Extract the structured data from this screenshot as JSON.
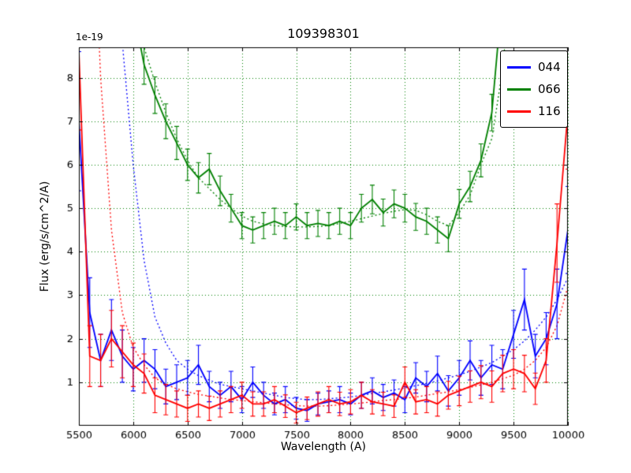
{
  "chart_data": {
    "type": "line",
    "title": "109398301",
    "xlabel": "Wavelength (A)",
    "ylabel": "Flux (erg/s/cm^2/A)",
    "offset_label": "1e-19",
    "xlim": [
      5500,
      10000
    ],
    "ylim": [
      0,
      8.7
    ],
    "xticks": [
      5500,
      6000,
      6500,
      7000,
      7500,
      8000,
      8500,
      9000,
      9500,
      10000
    ],
    "yticks": [
      1,
      2,
      3,
      4,
      5,
      6,
      7,
      8
    ],
    "grid": {
      "on": true,
      "color": "#008000",
      "style": "dotted"
    },
    "legend": {
      "position": "upper right",
      "entries": [
        {
          "label": "044",
          "color": "#0000ff"
        },
        {
          "label": "066",
          "color": "#008000"
        },
        {
          "label": "116",
          "color": "#ff0000"
        }
      ]
    },
    "series": [
      {
        "name": "044-dotted-model",
        "color": "#0000ff",
        "style": "dotted",
        "x": [
          5500,
          5600,
          5700,
          5800,
          5900,
          6000,
          6100,
          6200,
          6300,
          6400,
          6500,
          6600,
          6700,
          6800,
          6900,
          7000,
          7100,
          7200,
          7300,
          7400,
          7500,
          7600,
          7700,
          7800,
          7900,
          8000,
          8100,
          8200,
          8300,
          8400,
          8500,
          8600,
          8700,
          8800,
          8900,
          9000,
          9100,
          9200,
          9300,
          9400,
          9500,
          9600,
          9700,
          9800,
          9900,
          10000
        ],
        "y": [
          30,
          22,
          16,
          12,
          8.8,
          6.0,
          3.8,
          2.5,
          1.9,
          1.5,
          1.3,
          1.15,
          1.05,
          0.95,
          0.9,
          0.85,
          0.8,
          0.75,
          0.7,
          0.65,
          0.62,
          0.6,
          0.6,
          0.62,
          0.64,
          0.66,
          0.7,
          0.74,
          0.78,
          0.82,
          0.87,
          0.92,
          0.97,
          1.03,
          1.1,
          1.17,
          1.25,
          1.35,
          1.45,
          1.6,
          1.75,
          1.95,
          2.2,
          2.5,
          2.9,
          3.4
        ]
      },
      {
        "name": "066-dotted-model",
        "color": "#008000",
        "style": "dotted",
        "x": [
          6000,
          6100,
          6200,
          6300,
          6400,
          6500,
          6600,
          6700,
          6800,
          6900,
          7000,
          7100,
          7200,
          7300,
          7400,
          7500,
          7600,
          7700,
          7800,
          7900,
          8000,
          8100,
          8200,
          8300,
          8400,
          8500,
          8600,
          8700,
          8800,
          8900,
          9000,
          9100,
          9200,
          9300,
          9400,
          9500
        ],
        "y": [
          10.2,
          8.7,
          7.9,
          7.2,
          6.6,
          6.1,
          5.7,
          5.45,
          5.2,
          5.0,
          4.82,
          4.7,
          4.64,
          4.6,
          4.58,
          4.57,
          4.57,
          4.58,
          4.6,
          4.65,
          4.7,
          4.76,
          4.82,
          4.88,
          4.93,
          4.97,
          4.95,
          4.85,
          4.7,
          4.6,
          4.9,
          5.3,
          6.0,
          6.6,
          8.2,
          11.0
        ]
      },
      {
        "name": "116-dotted-model",
        "color": "#ff0000",
        "style": "dotted",
        "x": [
          5500,
          5600,
          5700,
          5800,
          5900,
          6000,
          6100,
          6200,
          6300,
          6400,
          6500,
          6600,
          6700,
          6800,
          6900,
          7000,
          7100,
          7200,
          7300,
          7400,
          7500,
          7600,
          7700,
          7800,
          7900,
          8000,
          8100,
          8200,
          8300,
          8400,
          8500,
          8600,
          8700,
          8800,
          8900,
          9000,
          9100,
          9200,
          9300,
          9400,
          9500,
          9600,
          9700,
          9800,
          9900,
          10000
        ],
        "y": [
          28,
          14,
          8.0,
          4.5,
          2.6,
          1.8,
          1.4,
          1.1,
          0.95,
          0.85,
          0.78,
          0.72,
          0.68,
          0.64,
          0.6,
          0.58,
          0.55,
          0.53,
          0.5,
          0.48,
          0.46,
          0.45,
          0.45,
          0.46,
          0.48,
          0.5,
          0.52,
          0.55,
          0.58,
          0.6,
          0.63,
          0.66,
          0.7,
          0.74,
          0.78,
          0.83,
          0.88,
          0.94,
          1.0,
          1.08,
          1.16,
          1.3,
          1.5,
          1.8,
          2.3,
          3.2
        ]
      },
      {
        "name": "044",
        "color": "#0000ff",
        "style": "solid",
        "x": [
          5500,
          5600,
          5700,
          5800,
          5900,
          6000,
          6100,
          6200,
          6300,
          6400,
          6500,
          6600,
          6700,
          6800,
          6900,
          7000,
          7100,
          7200,
          7300,
          7400,
          7500,
          7600,
          7700,
          7800,
          7900,
          8000,
          8100,
          8200,
          8300,
          8400,
          8500,
          8600,
          8700,
          8800,
          8900,
          9000,
          9100,
          9200,
          9300,
          9400,
          9500,
          9600,
          9700,
          9800,
          9900,
          10000
        ],
        "y": [
          7.0,
          2.6,
          1.5,
          2.2,
          1.6,
          1.3,
          1.5,
          1.3,
          0.9,
          1.0,
          1.1,
          1.4,
          0.9,
          0.7,
          0.9,
          0.6,
          1.0,
          0.7,
          0.5,
          0.6,
          0.4,
          0.35,
          0.5,
          0.55,
          0.6,
          0.5,
          0.7,
          0.8,
          0.65,
          0.75,
          0.6,
          1.1,
          0.9,
          1.2,
          0.8,
          1.1,
          1.5,
          1.1,
          1.4,
          1.3,
          2.1,
          2.9,
          1.6,
          2.0,
          2.8,
          4.5
        ],
        "yerr": [
          1.6,
          0.8,
          0.6,
          0.7,
          0.6,
          0.5,
          0.5,
          0.45,
          0.4,
          0.4,
          0.4,
          0.45,
          0.35,
          0.3,
          0.35,
          0.3,
          0.35,
          0.3,
          0.25,
          0.3,
          0.25,
          0.25,
          0.25,
          0.25,
          0.3,
          0.25,
          0.3,
          0.3,
          0.3,
          0.3,
          0.3,
          0.35,
          0.35,
          0.4,
          0.35,
          0.4,
          0.45,
          0.4,
          0.45,
          0.45,
          0.55,
          0.7,
          0.5,
          0.6,
          0.8,
          1.0
        ]
      },
      {
        "name": "066",
        "color": "#008000",
        "style": "solid",
        "x": [
          6000,
          6100,
          6200,
          6300,
          6400,
          6500,
          6600,
          6700,
          6800,
          6900,
          7000,
          7100,
          7200,
          7300,
          7400,
          7500,
          7600,
          7700,
          7800,
          7900,
          8000,
          8100,
          8200,
          8300,
          8400,
          8500,
          8600,
          8700,
          8800,
          8900,
          9000,
          9100,
          9200,
          9300,
          9400,
          9500
        ],
        "y": [
          9.6,
          8.3,
          7.6,
          7.0,
          6.5,
          6.0,
          5.7,
          5.9,
          5.4,
          5.0,
          4.6,
          4.5,
          4.6,
          4.7,
          4.6,
          4.8,
          4.6,
          4.65,
          4.6,
          4.7,
          4.6,
          5.0,
          5.2,
          4.9,
          5.1,
          5.0,
          4.8,
          4.7,
          4.5,
          4.3,
          5.1,
          5.5,
          6.1,
          7.2,
          10.0,
          12.0
        ],
        "yerr": [
          0.5,
          0.45,
          0.42,
          0.4,
          0.38,
          0.36,
          0.35,
          0.36,
          0.34,
          0.32,
          0.3,
          0.3,
          0.3,
          0.3,
          0.3,
          0.3,
          0.3,
          0.3,
          0.3,
          0.3,
          0.3,
          0.32,
          0.33,
          0.31,
          0.32,
          0.32,
          0.31,
          0.3,
          0.3,
          0.3,
          0.33,
          0.35,
          0.38,
          0.42,
          0.5,
          0.6
        ]
      },
      {
        "name": "116",
        "color": "#ff0000",
        "style": "solid",
        "x": [
          5500,
          5600,
          5700,
          5800,
          5900,
          6000,
          6100,
          6200,
          6300,
          6400,
          6500,
          6600,
          6700,
          6800,
          6900,
          7000,
          7100,
          7200,
          7300,
          7400,
          7500,
          7600,
          7700,
          7800,
          7900,
          8000,
          8100,
          8200,
          8300,
          8400,
          8500,
          8600,
          8700,
          8800,
          8900,
          9000,
          9100,
          9200,
          9300,
          9400,
          9500,
          9600,
          9700,
          9800,
          9900,
          10000
        ],
        "y": [
          8.6,
          1.6,
          1.5,
          2.0,
          1.7,
          1.4,
          1.2,
          0.7,
          0.6,
          0.5,
          0.4,
          0.5,
          0.4,
          0.5,
          0.6,
          0.7,
          0.5,
          0.5,
          0.6,
          0.45,
          0.3,
          0.4,
          0.5,
          0.6,
          0.5,
          0.55,
          0.7,
          0.55,
          0.5,
          0.45,
          1.0,
          0.55,
          0.6,
          0.5,
          0.7,
          0.8,
          0.9,
          1.0,
          0.9,
          1.2,
          1.3,
          1.2,
          0.85,
          1.5,
          4.2,
          7.2
        ],
        "yerr": [
          1.8,
          0.7,
          0.6,
          0.65,
          0.6,
          0.5,
          0.45,
          0.4,
          0.35,
          0.3,
          0.3,
          0.3,
          0.28,
          0.3,
          0.3,
          0.3,
          0.28,
          0.28,
          0.3,
          0.26,
          0.24,
          0.26,
          0.28,
          0.3,
          0.27,
          0.28,
          0.3,
          0.28,
          0.27,
          0.26,
          0.35,
          0.28,
          0.3,
          0.28,
          0.32,
          0.34,
          0.36,
          0.38,
          0.36,
          0.42,
          0.45,
          0.42,
          0.36,
          0.5,
          0.9,
          1.3
        ]
      }
    ]
  }
}
